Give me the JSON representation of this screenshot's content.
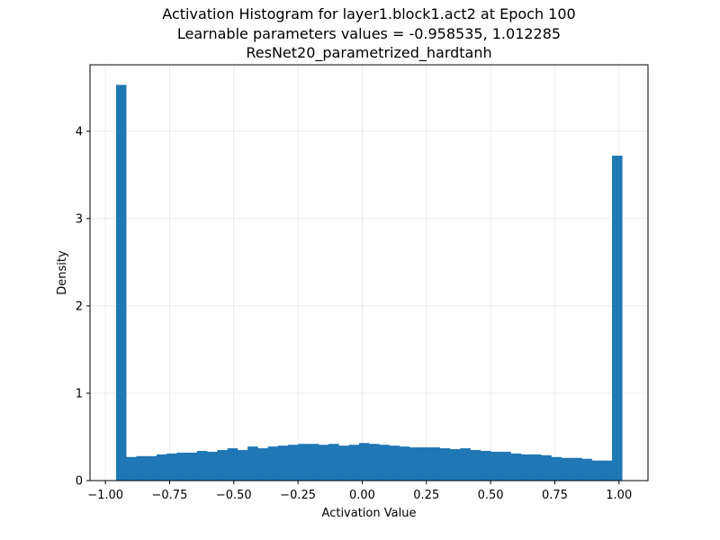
{
  "chart_data": {
    "type": "bar",
    "title_lines": [
      "Activation Histogram for layer1.block1.act2 at Epoch 100",
      "Learnable parameters values = -0.958535, 1.012285",
      "ResNet20_parametrized_hardtanh"
    ],
    "xlabel": "Activation Value",
    "ylabel": "Density",
    "xlim": [
      -1.06,
      1.113
    ],
    "ylim": [
      0,
      4.76
    ],
    "grid": true,
    "color": "#1f77b4",
    "xticks": [
      -1.0,
      -0.75,
      -0.5,
      -0.25,
      0.0,
      0.25,
      0.5,
      0.75,
      1.0
    ],
    "xtick_labels": [
      "−1.00",
      "−0.75",
      "−0.50",
      "−0.25",
      "0.00",
      "0.25",
      "0.50",
      "0.75",
      "1.00"
    ],
    "yticks": [
      0,
      1,
      2,
      3,
      4
    ],
    "ytick_labels": [
      "0",
      "1",
      "2",
      "3",
      "4"
    ],
    "bin_start": -0.958535,
    "bin_end": 1.012285,
    "values": [
      4.53,
      0.27,
      0.28,
      0.28,
      0.3,
      0.31,
      0.32,
      0.32,
      0.34,
      0.33,
      0.35,
      0.37,
      0.35,
      0.39,
      0.37,
      0.39,
      0.4,
      0.41,
      0.42,
      0.42,
      0.41,
      0.42,
      0.4,
      0.41,
      0.43,
      0.42,
      0.41,
      0.4,
      0.39,
      0.38,
      0.38,
      0.38,
      0.37,
      0.36,
      0.37,
      0.35,
      0.34,
      0.33,
      0.33,
      0.31,
      0.3,
      0.3,
      0.29,
      0.27,
      0.26,
      0.26,
      0.25,
      0.23,
      0.23,
      3.72
    ]
  }
}
